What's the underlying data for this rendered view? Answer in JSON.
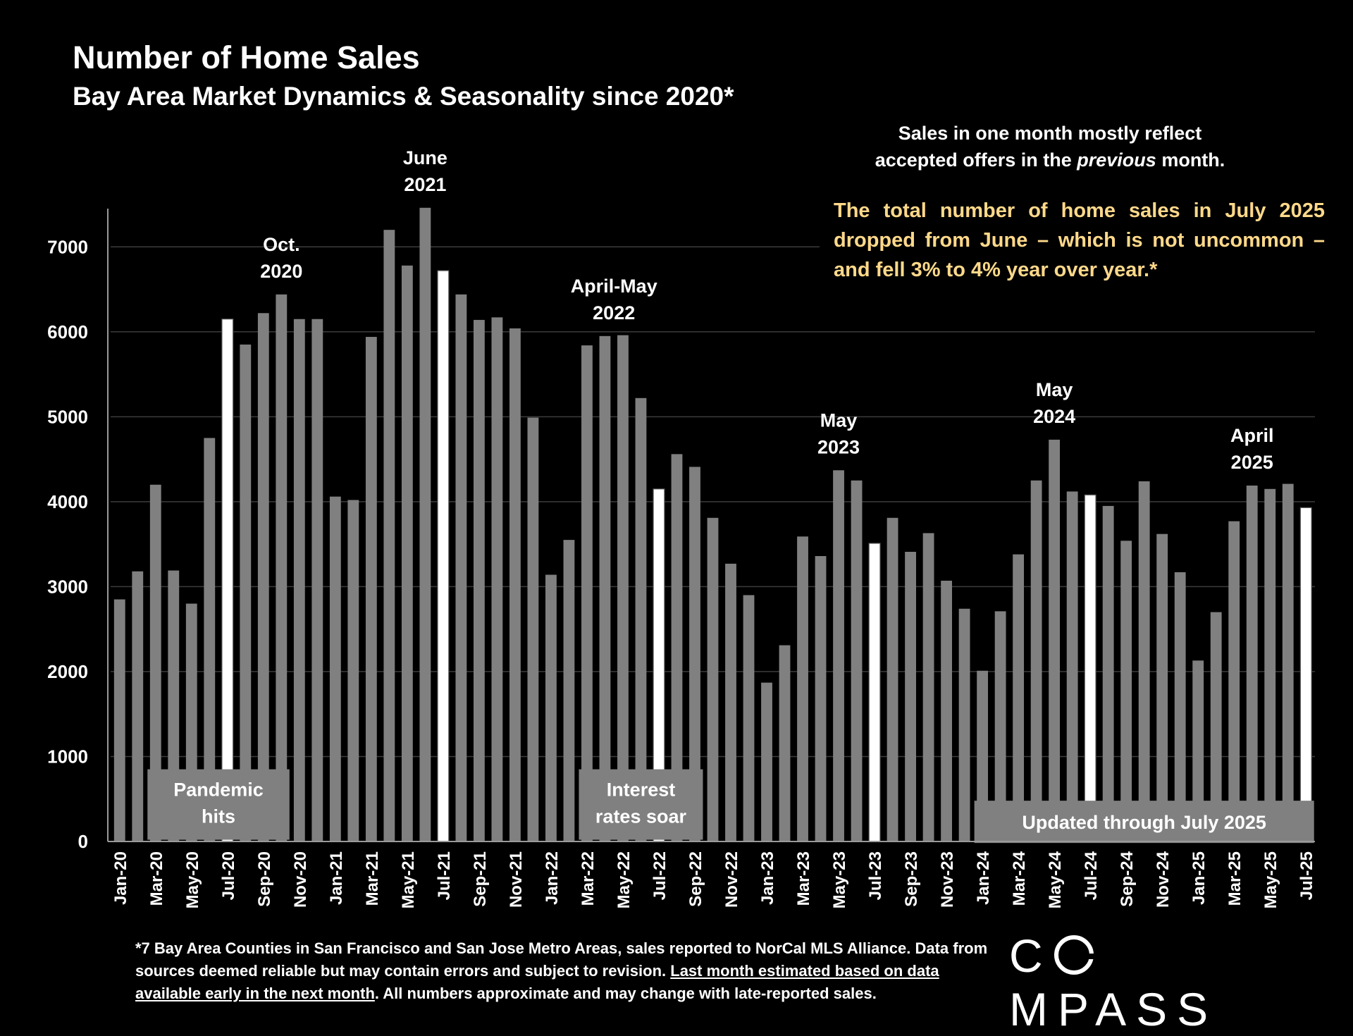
{
  "header": {
    "title": "Number of Home Sales",
    "subtitle": "Bay Area Market Dynamics & Seasonality since 2020*"
  },
  "note": {
    "line1": "Sales in one month mostly reflect",
    "line2_pre": "accepted offers in the ",
    "line2_em": "previous",
    "line2_post": " month."
  },
  "highlight": "The total number of home sales in July 2025 dropped from June – which is not uncommon – and fell 3% to 4% year over year.*",
  "footnote": {
    "part1": "*7 Bay Area Counties in San Francisco and San Jose Metro Areas, sales reported to NorCal MLS Alliance.  Data from sources deemed reliable but may contain errors and subject to revision. ",
    "underlined": "Last month estimated based on data available early in the next month",
    "part2": ". All numbers approximate and may change with late-reported sales."
  },
  "logo": {
    "pre": "C",
    "post": "MPASS"
  },
  "colors": {
    "background": "#000000",
    "bar": "#808080",
    "july_bar": "#ffffff",
    "highlight_text": "#ffd98a",
    "shade_box": "#808080"
  },
  "chart_data": {
    "type": "bar",
    "categories": [
      "Jan-20",
      "Feb-20",
      "Mar-20",
      "Apr-20",
      "May-20",
      "Jun-20",
      "Jul-20",
      "Aug-20",
      "Sep-20",
      "Oct-20",
      "Nov-20",
      "Dec-20",
      "Jan-21",
      "Feb-21",
      "Mar-21",
      "Apr-21",
      "May-21",
      "Jun-21",
      "Jul-21",
      "Aug-21",
      "Sep-21",
      "Oct-21",
      "Nov-21",
      "Dec-21",
      "Jan-22",
      "Feb-22",
      "Mar-22",
      "Apr-22",
      "May-22",
      "Jun-22",
      "Jul-22",
      "Aug-22",
      "Sep-22",
      "Oct-22",
      "Nov-22",
      "Dec-22",
      "Jan-23",
      "Feb-23",
      "Mar-23",
      "Apr-23",
      "May-23",
      "Jun-23",
      "Jul-23",
      "Aug-23",
      "Sep-23",
      "Oct-23",
      "Nov-23",
      "Dec-23",
      "Jan-24",
      "Feb-24",
      "Mar-24",
      "Apr-24",
      "May-24",
      "Jun-24",
      "Jul-24",
      "Aug-24",
      "Sep-24",
      "Oct-24",
      "Nov-24",
      "Dec-24",
      "Jan-25",
      "Feb-25",
      "Mar-25",
      "Apr-25",
      "May-25",
      "Jun-25",
      "Jul-25"
    ],
    "values": [
      2850,
      3180,
      4200,
      3190,
      2800,
      4750,
      6150,
      5850,
      6220,
      6440,
      6150,
      6150,
      4060,
      4020,
      5940,
      7200,
      6780,
      7460,
      6720,
      6440,
      6140,
      6170,
      6040,
      4990,
      3140,
      3550,
      5840,
      5950,
      5960,
      5220,
      4150,
      4560,
      4410,
      3810,
      3270,
      2900,
      1870,
      2310,
      3590,
      3360,
      4370,
      4250,
      3510,
      3810,
      3410,
      3630,
      3070,
      2740,
      2010,
      2710,
      3380,
      4250,
      4730,
      4120,
      4080,
      3950,
      3540,
      4240,
      3620,
      3170,
      2130,
      2700,
      3770,
      4190,
      4150,
      4210,
      3930
    ],
    "highlight_categories": [
      "Jul-20",
      "Jul-21",
      "Jul-22",
      "Jul-23",
      "Jul-24",
      "Jul-25"
    ],
    "ylim": [
      0,
      7500
    ],
    "yticks": [
      0,
      1000,
      2000,
      3000,
      4000,
      5000,
      6000,
      7000
    ],
    "x_tick_labels": [
      "Jan-20",
      "Mar-20",
      "May-20",
      "Jul-20",
      "Sep-20",
      "Nov-20",
      "Jan-21",
      "Mar-21",
      "May-21",
      "Jul-21",
      "Sep-21",
      "Nov-21",
      "Jan-22",
      "Mar-22",
      "May-22",
      "Jul-22",
      "Sep-22",
      "Nov-22",
      "Jan-23",
      "Mar-23",
      "May-23",
      "Jul-23",
      "Sep-23",
      "Nov-23",
      "Jan-24",
      "Mar-24",
      "May-24",
      "Jul-24",
      "Sep-24",
      "Nov-24",
      "Jan-25",
      "Mar-25",
      "May-25",
      "Jul-25"
    ],
    "grid": "horizontal",
    "annotations": [
      {
        "category": "Oct-20",
        "lines": [
          "Oct.",
          "2020"
        ]
      },
      {
        "category": "Jun-21",
        "lines": [
          "June",
          "2021"
        ]
      },
      {
        "category": "Apr-22",
        "lines": [
          "April-May",
          "2022"
        ]
      },
      {
        "category": "May-23",
        "lines": [
          "May",
          "2023"
        ]
      },
      {
        "category": "May-24",
        "lines": [
          "May",
          "2024"
        ]
      },
      {
        "category": "Apr-25",
        "lines": [
          "April",
          "2025"
        ]
      }
    ],
    "callouts": [
      {
        "lines": [
          "Pandemic",
          "hits"
        ],
        "from": "Mar-20",
        "to": "Oct-20",
        "level": 850
      },
      {
        "lines": [
          "Interest",
          "rates soar"
        ],
        "from": "Mar-22",
        "to": "Sep-22",
        "level": 850
      },
      {
        "lines": [
          "Updated through July 2025"
        ],
        "from": "Jan-24",
        "to": "Jul-25",
        "level": 480
      }
    ]
  }
}
